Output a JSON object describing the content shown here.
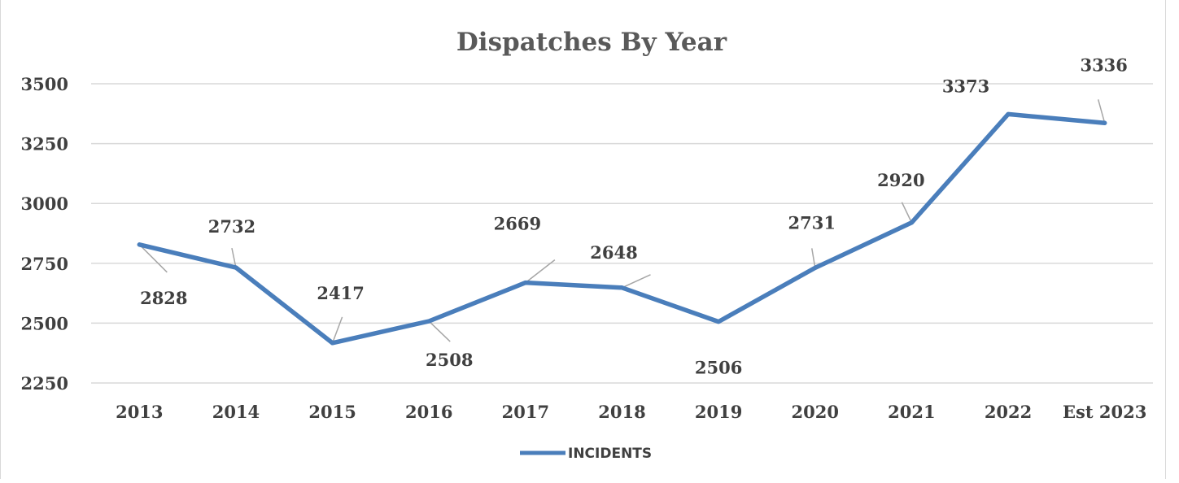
{
  "chart_data": {
    "type": "line",
    "title": "Dispatches By Year",
    "xlabel": "",
    "ylabel": "",
    "categories": [
      "2013",
      "2014",
      "2015",
      "2016",
      "2017",
      "2018",
      "2019",
      "2020",
      "2021",
      "2022",
      "Est 2023"
    ],
    "series": [
      {
        "name": "INCIDENTS",
        "values": [
          2828,
          2732,
          2417,
          2508,
          2669,
          2648,
          2506,
          2731,
          2920,
          3373,
          3336
        ],
        "labels": [
          "2828",
          "2732",
          "2417",
          "2508",
          "2669",
          "2648",
          "2506",
          "2731",
          "2920",
          "3373",
          "3336"
        ]
      }
    ],
    "yticks": [
      "2250",
      "2500",
      "2750",
      "3000",
      "3250",
      "3500"
    ],
    "ylim": [
      2250,
      3500
    ],
    "grid": true,
    "legend_position": "bottom",
    "colors": {
      "line": "#4a7ebb",
      "grid": "#d9d9d9",
      "leader": "#a6a6a6"
    }
  }
}
